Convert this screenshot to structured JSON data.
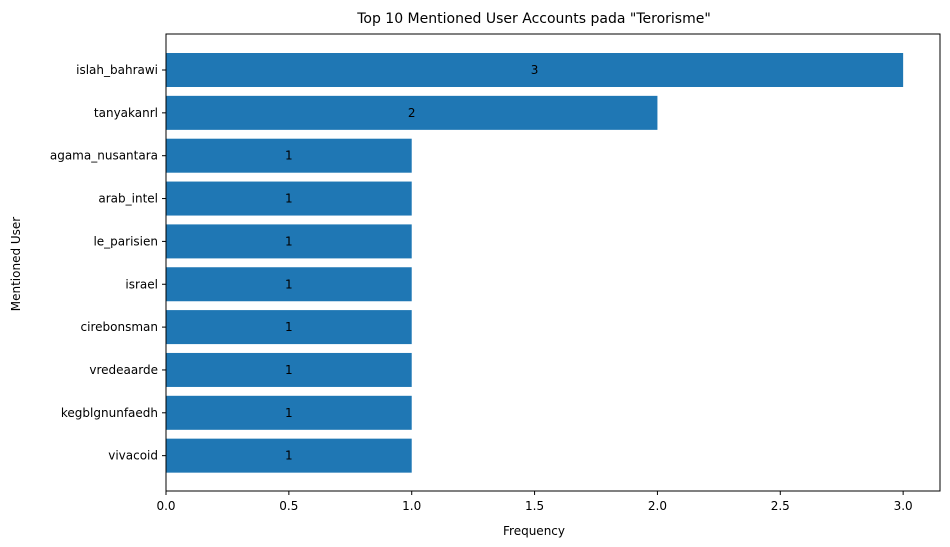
{
  "chart_data": {
    "type": "bar",
    "orientation": "horizontal",
    "title": "Top 10 Mentioned User Accounts pada \"Terorisme\"",
    "xlabel": "Frequency",
    "ylabel": "Mentioned User",
    "xlim": [
      0,
      3.15
    ],
    "xticks": [
      "0.0",
      "0.5",
      "1.0",
      "1.5",
      "2.0",
      "2.5",
      "3.0"
    ],
    "categories": [
      "islah_bahrawi",
      "tanyakanrl",
      "agama_nusantara",
      "arab_intel",
      "le_parisien",
      "israel",
      "cirebonsman",
      "vredeaarde",
      "kegblgnunfaedh",
      "vivacoid"
    ],
    "values": [
      3,
      2,
      1,
      1,
      1,
      1,
      1,
      1,
      1,
      1
    ],
    "bar_color": "#1f77b4",
    "grid": false,
    "legend": "none"
  }
}
